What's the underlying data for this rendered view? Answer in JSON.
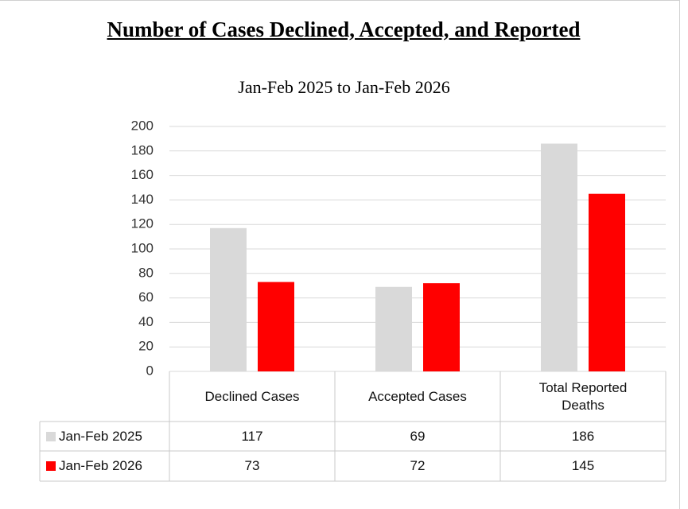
{
  "chart_data": {
    "type": "bar",
    "title": "Number of Cases Declined, Accepted, and Reported",
    "subtitle": "Jan-Feb 2025 to Jan-Feb 2026",
    "categories": [
      "Declined Cases",
      "Accepted Cases",
      "Total Reported Deaths"
    ],
    "series": [
      {
        "name": "Jan-Feb 2025",
        "color": "#d9d9d9",
        "values": [
          117,
          69,
          186
        ]
      },
      {
        "name": "Jan-Feb 2026",
        "color": "#ff0000",
        "values": [
          73,
          72,
          145
        ]
      }
    ],
    "ylim": [
      0,
      200
    ],
    "yticks": [
      0,
      20,
      40,
      60,
      80,
      100,
      120,
      140,
      160,
      180,
      200
    ],
    "grid": true
  }
}
